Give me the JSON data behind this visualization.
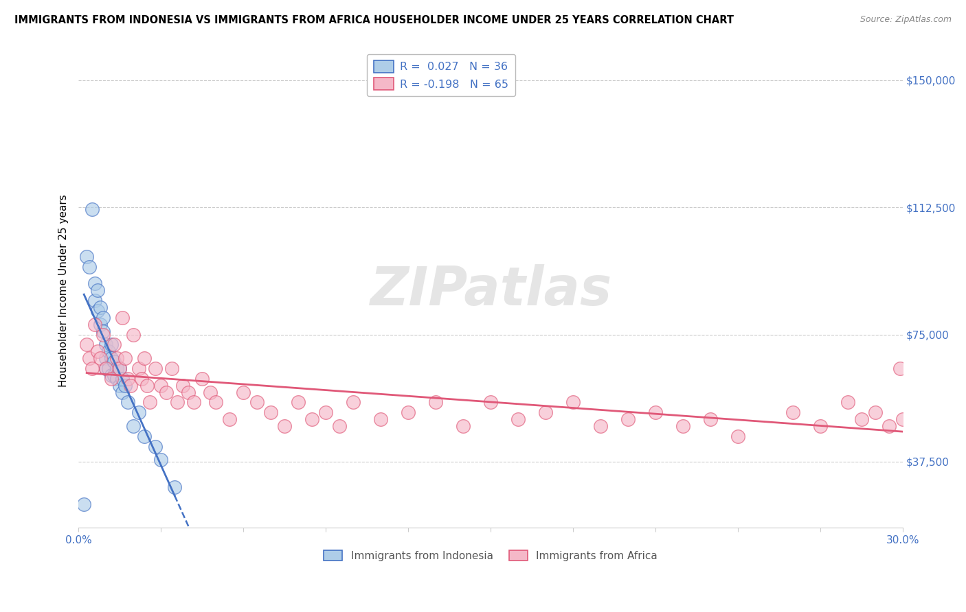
{
  "title": "IMMIGRANTS FROM INDONESIA VS IMMIGRANTS FROM AFRICA HOUSEHOLDER INCOME UNDER 25 YEARS CORRELATION CHART",
  "source": "Source: ZipAtlas.com",
  "ylabel": "Householder Income Under 25 years",
  "xlim": [
    0.0,
    0.3
  ],
  "ylim": [
    18000,
    158000
  ],
  "yticks": [
    37500,
    75000,
    112500,
    150000
  ],
  "ytick_labels": [
    "$37,500",
    "$75,000",
    "$112,500",
    "$150,000"
  ],
  "xticks": [
    0.0,
    0.03,
    0.06,
    0.09,
    0.12,
    0.15,
    0.18,
    0.21,
    0.24,
    0.27,
    0.3
  ],
  "xtick_labels": [
    "0.0%",
    "",
    "",
    "",
    "",
    "",
    "",
    "",
    "",
    "",
    "30.0%"
  ],
  "color_indonesia": "#aecde8",
  "color_africa": "#f5b8c8",
  "trendline_color_indonesia": "#4472c4",
  "trendline_color_africa": "#e05878",
  "indonesia_x": [
    0.002,
    0.003,
    0.004,
    0.005,
    0.006,
    0.006,
    0.007,
    0.007,
    0.008,
    0.008,
    0.009,
    0.009,
    0.01,
    0.01,
    0.01,
    0.011,
    0.011,
    0.012,
    0.012,
    0.012,
    0.013,
    0.013,
    0.014,
    0.014,
    0.015,
    0.015,
    0.016,
    0.016,
    0.017,
    0.018,
    0.02,
    0.022,
    0.024,
    0.028,
    0.03,
    0.035
  ],
  "indonesia_y": [
    25000,
    98000,
    95000,
    112000,
    85000,
    90000,
    82000,
    88000,
    78000,
    83000,
    76000,
    80000,
    68000,
    72000,
    65000,
    70000,
    65000,
    63000,
    68000,
    72000,
    63000,
    67000,
    65000,
    62000,
    60000,
    65000,
    58000,
    62000,
    60000,
    55000,
    48000,
    52000,
    45000,
    42000,
    38000,
    30000
  ],
  "africa_x": [
    0.003,
    0.004,
    0.005,
    0.006,
    0.007,
    0.008,
    0.009,
    0.01,
    0.012,
    0.013,
    0.014,
    0.015,
    0.016,
    0.017,
    0.018,
    0.019,
    0.02,
    0.022,
    0.023,
    0.024,
    0.025,
    0.026,
    0.028,
    0.03,
    0.032,
    0.034,
    0.036,
    0.038,
    0.04,
    0.042,
    0.045,
    0.048,
    0.05,
    0.055,
    0.06,
    0.065,
    0.07,
    0.075,
    0.08,
    0.085,
    0.09,
    0.095,
    0.1,
    0.11,
    0.12,
    0.13,
    0.14,
    0.15,
    0.16,
    0.17,
    0.18,
    0.19,
    0.2,
    0.21,
    0.22,
    0.23,
    0.24,
    0.26,
    0.27,
    0.28,
    0.285,
    0.29,
    0.295,
    0.299,
    0.3
  ],
  "africa_y": [
    72000,
    68000,
    65000,
    78000,
    70000,
    68000,
    75000,
    65000,
    62000,
    72000,
    68000,
    65000,
    80000,
    68000,
    62000,
    60000,
    75000,
    65000,
    62000,
    68000,
    60000,
    55000,
    65000,
    60000,
    58000,
    65000,
    55000,
    60000,
    58000,
    55000,
    62000,
    58000,
    55000,
    50000,
    58000,
    55000,
    52000,
    48000,
    55000,
    50000,
    52000,
    48000,
    55000,
    50000,
    52000,
    55000,
    48000,
    55000,
    50000,
    52000,
    55000,
    48000,
    50000,
    52000,
    48000,
    50000,
    45000,
    52000,
    48000,
    55000,
    50000,
    52000,
    48000,
    65000,
    50000
  ]
}
